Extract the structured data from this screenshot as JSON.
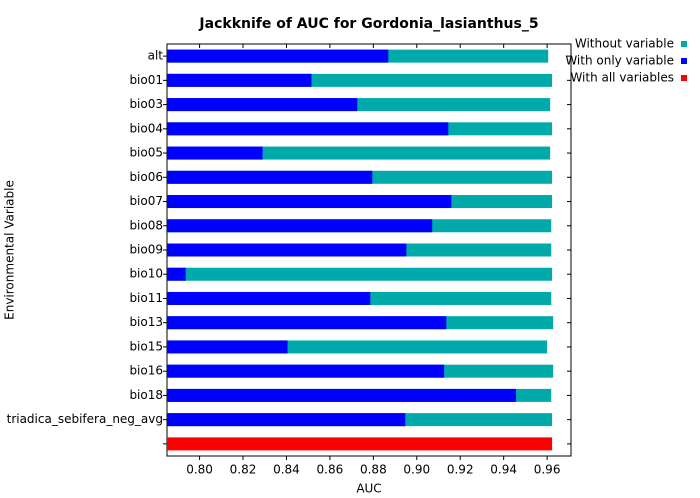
{
  "chart_data": {
    "type": "barh",
    "title": "Jackknife of AUC for Gordonia_lasianthus_5",
    "xlabel": "AUC",
    "ylabel": "Environmental Variable",
    "categories": [
      "alt",
      "bio01",
      "bio03",
      "bio04",
      "bio05",
      "bio06",
      "bio07",
      "bio08",
      "bio09",
      "bio10",
      "bio11",
      "bio13",
      "bio15",
      "bio16",
      "bio18",
      "triadica_sebifera_neg_avg",
      null
    ],
    "series": [
      {
        "name": "Without variable",
        "color": "#00aaaa",
        "values": [
          0.9605,
          0.9623,
          0.9614,
          0.9623,
          0.9614,
          0.9623,
          0.9623,
          0.9619,
          0.9619,
          0.9623,
          0.9619,
          0.9628,
          0.96,
          0.9628,
          0.9619,
          0.9623,
          null
        ]
      },
      {
        "name": "With only variable",
        "color": "#0000ff",
        "values": [
          0.8869,
          0.8515,
          0.8726,
          0.9145,
          0.829,
          0.8795,
          0.9159,
          0.9071,
          0.8952,
          0.7936,
          0.8786,
          0.9136,
          0.8405,
          0.9126,
          0.9457,
          0.8947,
          null
        ]
      },
      {
        "name": "With all variables",
        "color": "#ff0000",
        "values": [
          null,
          null,
          null,
          null,
          null,
          null,
          null,
          null,
          null,
          null,
          null,
          null,
          null,
          null,
          null,
          null,
          0.9623
        ]
      }
    ],
    "xlim": [
      0.785,
      0.971
    ],
    "xticks": [
      {
        "value": 0.8,
        "label": "0.80"
      },
      {
        "value": 0.82,
        "label": "0.82"
      },
      {
        "value": 0.84,
        "label": "0.84"
      },
      {
        "value": 0.86,
        "label": "0.86"
      },
      {
        "value": 0.88,
        "label": "0.88"
      },
      {
        "value": 0.9,
        "label": "0.90"
      },
      {
        "value": 0.92,
        "label": "0.92"
      },
      {
        "value": 0.94,
        "label": "0.94"
      },
      {
        "value": 0.96,
        "label": "0.96"
      }
    ],
    "legend": "upper-right"
  }
}
